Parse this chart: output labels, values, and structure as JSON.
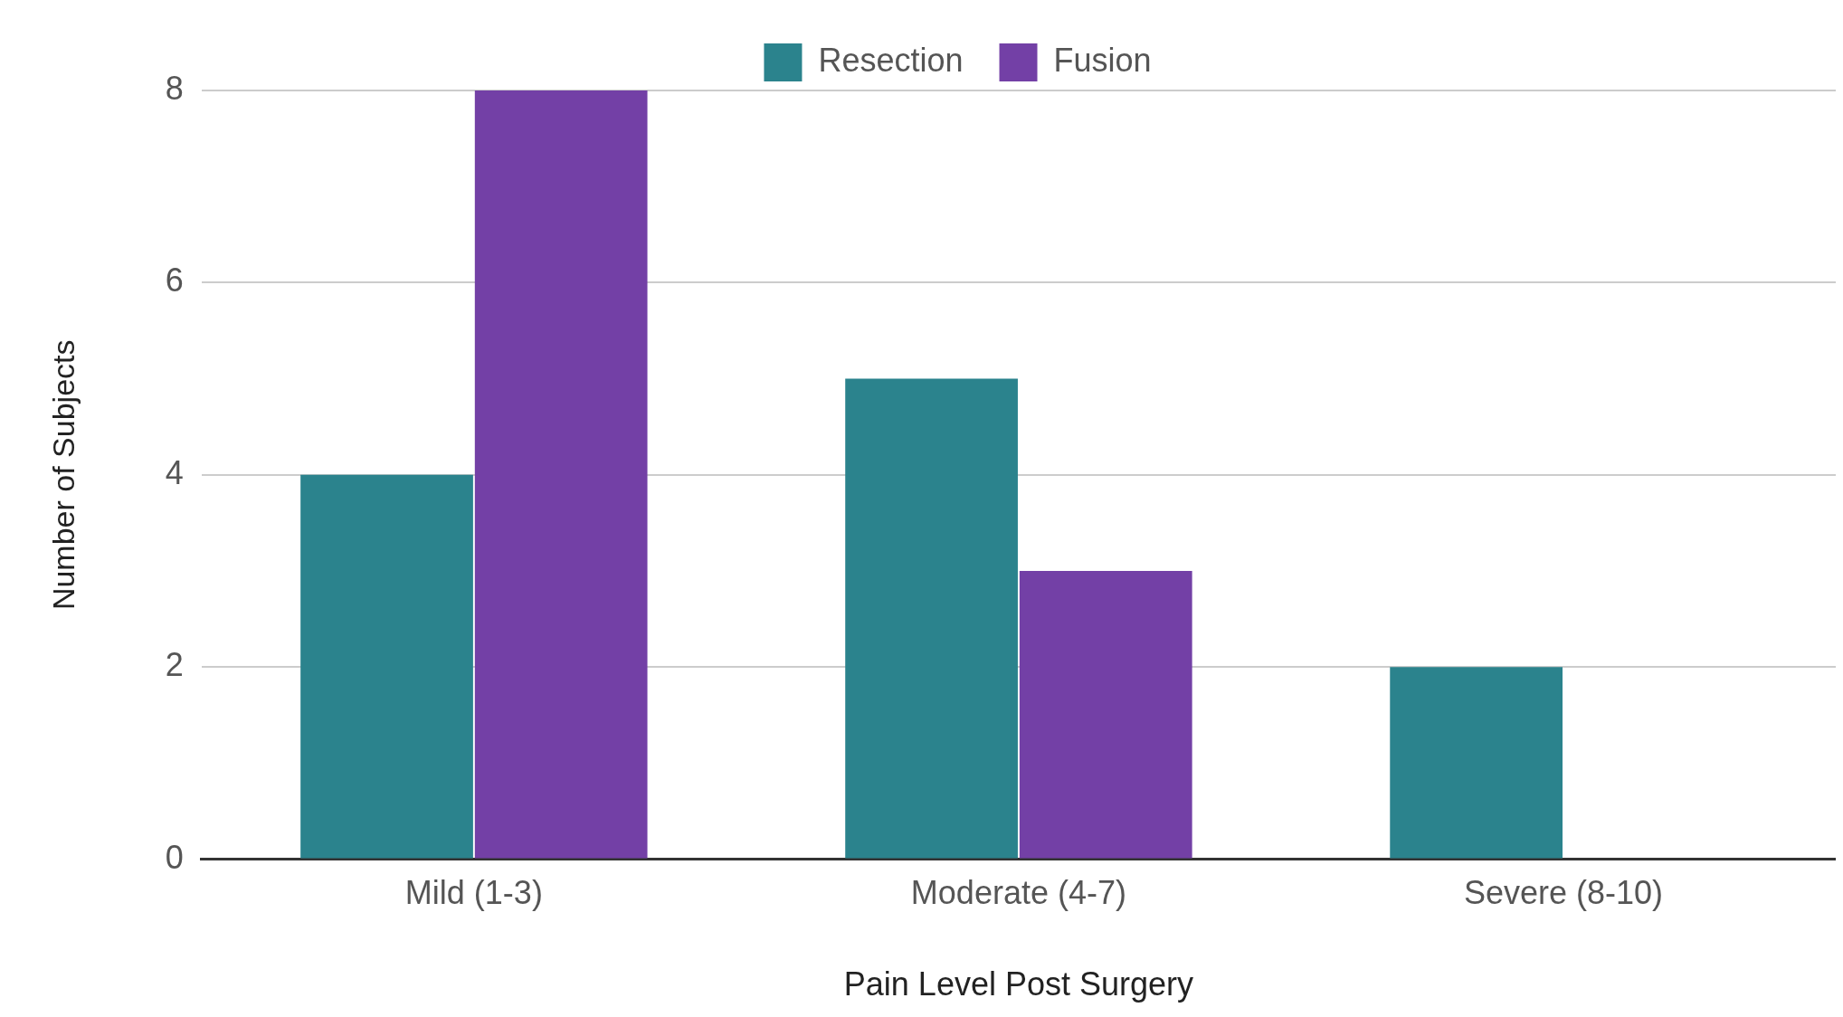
{
  "chart_data": {
    "type": "bar",
    "xlabel": "Pain Level Post Surgery",
    "ylabel": "Number of Subjects",
    "categories": [
      "Mild (1-3)",
      "Moderate (4-7)",
      "Severe (8-10)"
    ],
    "series": [
      {
        "name": "Resection",
        "color": "#2b838d",
        "values": [
          4,
          5,
          2
        ]
      },
      {
        "name": "Fusion",
        "color": "#7340a6",
        "values": [
          8,
          3,
          0
        ]
      }
    ],
    "ylim": [
      0,
      8
    ],
    "yticks": [
      0,
      2,
      4,
      6,
      8
    ],
    "grid": "y",
    "legend": "top"
  }
}
